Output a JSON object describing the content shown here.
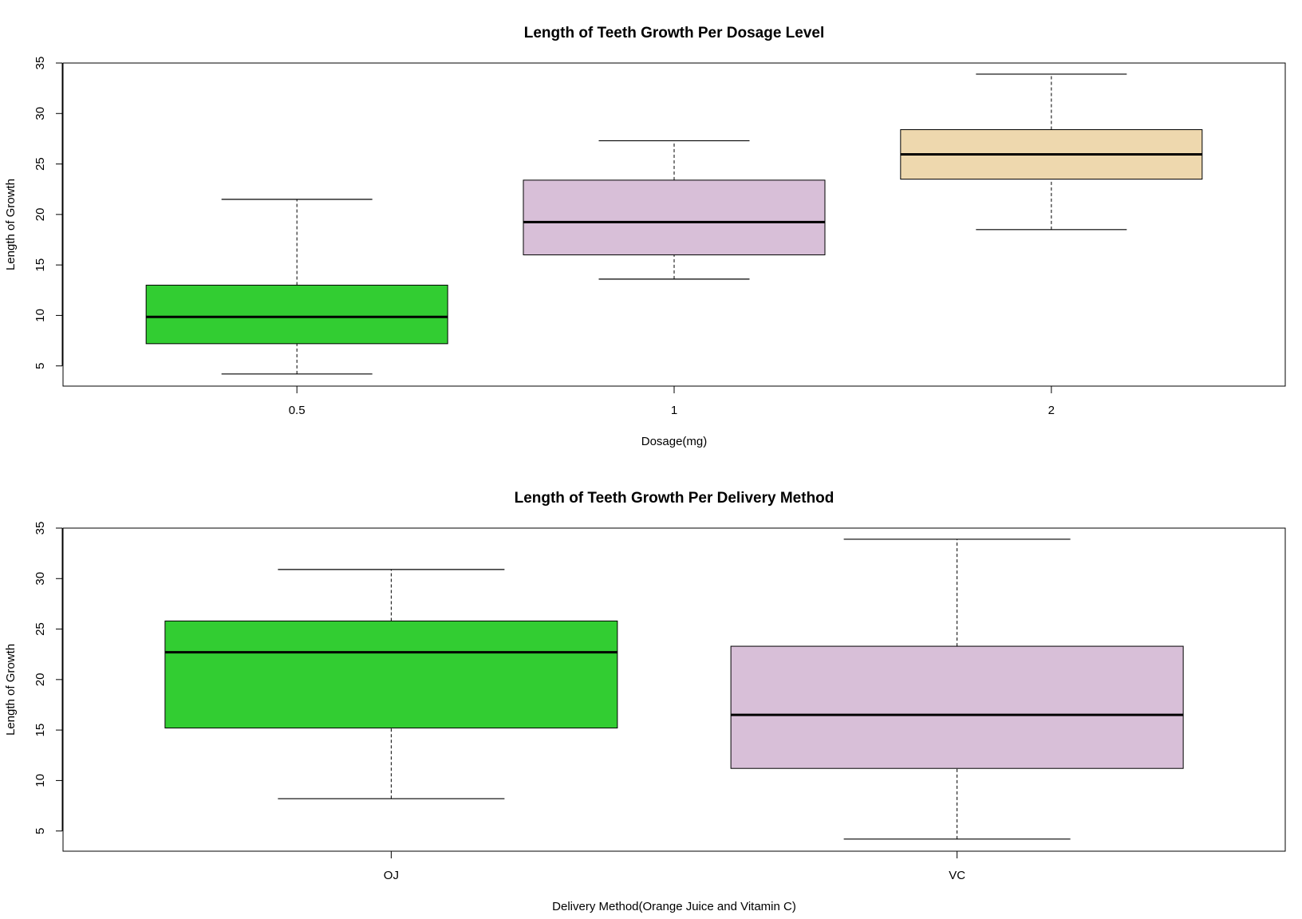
{
  "chart_data": [
    {
      "type": "boxplot",
      "title": "Length of Teeth Growth Per Dosage Level",
      "xlabel": "Dosage(mg)",
      "ylabel": "Length of Growth",
      "ylim": [
        3.0,
        35.0
      ],
      "yticks": [
        5,
        10,
        15,
        20,
        25,
        30,
        35
      ],
      "categories": [
        "0.5",
        "1",
        "2"
      ],
      "boxes": [
        {
          "category": "0.5",
          "min": 4.2,
          "q1": 7.2,
          "median": 9.85,
          "q3": 13.0,
          "max": 21.5,
          "color": "#32CD32"
        },
        {
          "category": "1",
          "min": 13.6,
          "q1": 16.0,
          "median": 19.25,
          "q3": 23.4,
          "max": 27.3,
          "color": "#D8BFD8"
        },
        {
          "category": "2",
          "min": 18.5,
          "q1": 23.5,
          "median": 25.95,
          "q3": 28.4,
          "max": 33.9,
          "color": "#EED8AE"
        }
      ]
    },
    {
      "type": "boxplot",
      "title": "Length of Teeth Growth Per Delivery Method",
      "xlabel": "Delivery Method(Orange Juice and Vitamin C)",
      "ylabel": "Length of Growth",
      "ylim": [
        3.0,
        35.0
      ],
      "yticks": [
        5,
        10,
        15,
        20,
        25,
        30,
        35
      ],
      "categories": [
        "OJ",
        "VC"
      ],
      "boxes": [
        {
          "category": "OJ",
          "min": 8.2,
          "q1": 15.2,
          "median": 22.7,
          "q3": 25.8,
          "max": 30.9,
          "color": "#32CD32"
        },
        {
          "category": "VC",
          "min": 4.2,
          "q1": 11.2,
          "median": 16.5,
          "q3": 23.3,
          "max": 33.9,
          "color": "#D8BFD8"
        }
      ]
    }
  ]
}
